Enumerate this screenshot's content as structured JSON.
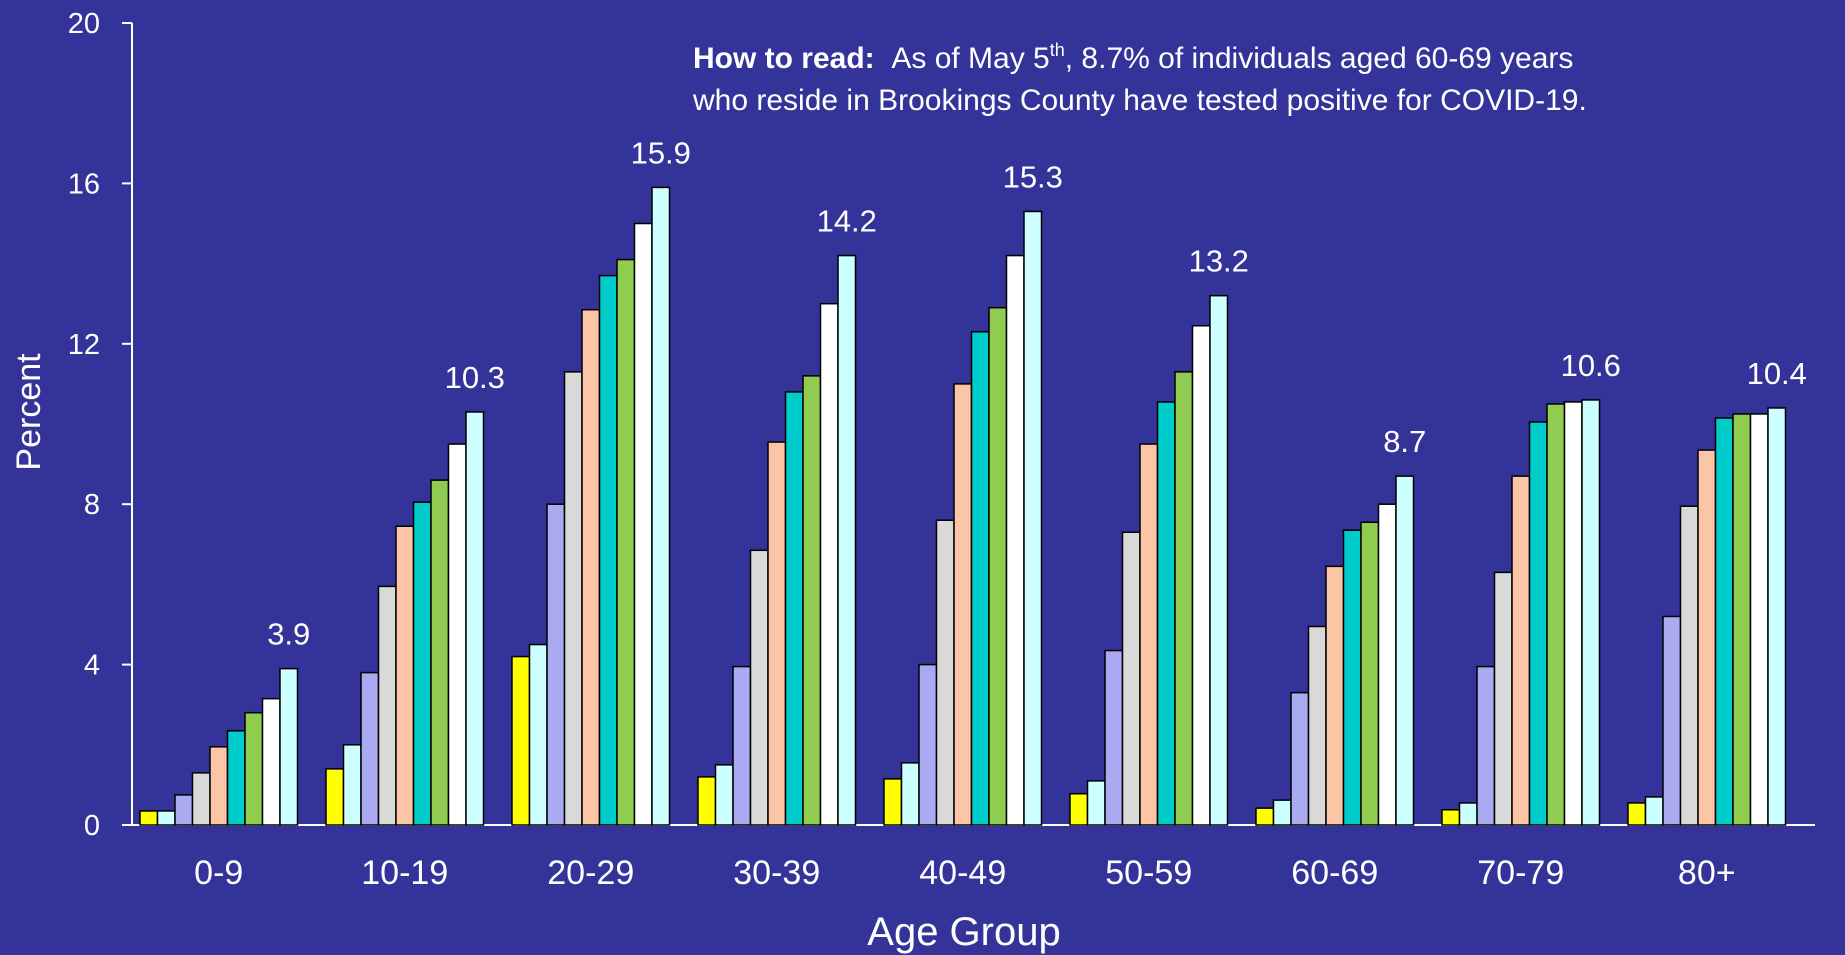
{
  "note": {
    "label": "How to read:",
    "text_1": "As of May 5",
    "text_sup": "th",
    "text_2": ", 8.7% of individuals aged 60-69 years",
    "line_2": "who reside in Brookings County have tested positive for COVID-19."
  },
  "colors": {
    "background": "#333399",
    "axis": "#ffffff",
    "text": "#ffffff",
    "series": [
      "#ffff00",
      "#ccffff",
      "#aaaaf2",
      "#d9d9d9",
      "#fcc5a6",
      "#00cccc",
      "#8fcc4f",
      "#ffffff",
      "#ccffff"
    ]
  },
  "chart_data": {
    "type": "bar",
    "title": "",
    "xlabel": "Age Group",
    "ylabel": "Percent",
    "ylim": [
      0,
      20
    ],
    "yticks": [
      0,
      4,
      8,
      12,
      16,
      20
    ],
    "grid": false,
    "legend": "none",
    "categories": [
      "0-9",
      "10-19",
      "20-29",
      "30-39",
      "40-49",
      "50-59",
      "60-69",
      "70-79",
      "80+"
    ],
    "series": [
      {
        "values": [
          0.35,
          1.4,
          4.2,
          1.2,
          1.15,
          0.78,
          0.42,
          0.38,
          0.55
        ]
      },
      {
        "values": [
          0.35,
          2.0,
          4.5,
          1.5,
          1.55,
          1.1,
          0.62,
          0.55,
          0.7
        ]
      },
      {
        "values": [
          0.75,
          3.8,
          8.0,
          3.95,
          4.0,
          4.35,
          3.3,
          3.95,
          5.2
        ]
      },
      {
        "values": [
          1.3,
          5.95,
          11.3,
          6.85,
          7.6,
          7.3,
          4.95,
          6.3,
          7.95
        ]
      },
      {
        "values": [
          1.95,
          7.45,
          12.85,
          9.55,
          11.0,
          9.5,
          6.45,
          8.7,
          9.35
        ]
      },
      {
        "values": [
          2.35,
          8.05,
          13.7,
          10.8,
          12.3,
          10.55,
          7.35,
          10.05,
          10.15
        ]
      },
      {
        "values": [
          2.8,
          8.6,
          14.1,
          11.2,
          12.9,
          11.3,
          7.55,
          10.5,
          10.25
        ]
      },
      {
        "values": [
          3.15,
          9.5,
          15.0,
          13.0,
          14.2,
          12.45,
          8.0,
          10.55,
          10.25
        ]
      },
      {
        "values": [
          3.9,
          10.3,
          15.9,
          14.2,
          15.3,
          13.2,
          8.7,
          10.6,
          10.4
        ]
      }
    ],
    "annotations": [
      "3.9",
      "10.3",
      "15.9",
      "14.2",
      "15.3",
      "13.2",
      "8.7",
      "10.6",
      "10.4"
    ]
  }
}
